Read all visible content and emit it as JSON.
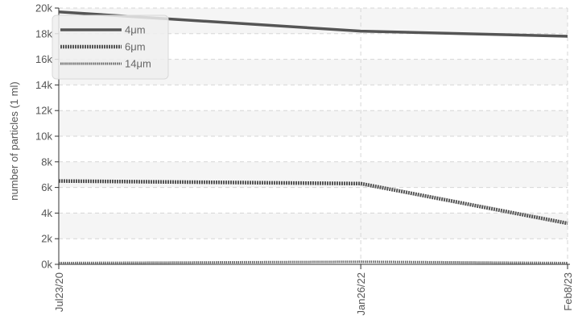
{
  "chart_data": {
    "type": "line",
    "title": "",
    "xlabel": "",
    "ylabel": "number of particles (1 ml)",
    "x": [
      "Jul23/20",
      "Jan26/22",
      "Feb8/23"
    ],
    "x_days": [
      0,
      552,
      930
    ],
    "ylim": [
      0,
      20000
    ],
    "yticks": [
      0,
      2000,
      4000,
      6000,
      8000,
      10000,
      12000,
      14000,
      16000,
      18000,
      20000
    ],
    "ytick_labels": [
      "0k",
      "2k",
      "4k",
      "6k",
      "8k",
      "10k",
      "12k",
      "14k",
      "16k",
      "18k",
      "20k"
    ],
    "grid": true,
    "legend_position": "top-left",
    "series": [
      {
        "name": "4μm",
        "values": [
          19700,
          18200,
          17800
        ],
        "color": "#555555",
        "style": "solid"
      },
      {
        "name": "6μm",
        "values": [
          6500,
          6300,
          3200
        ],
        "color": "#555555",
        "style": "dotted-thick"
      },
      {
        "name": "14μm",
        "values": [
          100,
          200,
          100
        ],
        "color": "#666666",
        "style": "dotted-thin"
      }
    ]
  }
}
